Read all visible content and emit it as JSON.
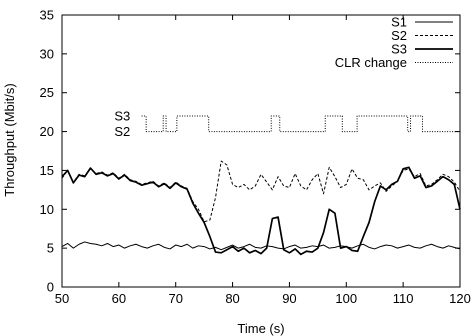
{
  "chart_data": {
    "type": "line",
    "title": "",
    "xlabel": "Time (s)",
    "ylabel": "Throughput (Mbit/s)",
    "xlim": [
      50,
      120
    ],
    "ylim": [
      0,
      35
    ],
    "x_ticks": [
      50,
      60,
      70,
      80,
      90,
      100,
      110,
      120
    ],
    "y_ticks": [
      0,
      5,
      10,
      15,
      20,
      25,
      30,
      35
    ],
    "grid": false,
    "legend_position": "top-right",
    "series": [
      {
        "name": "S1",
        "style": "solid-thin",
        "x": [
          50,
          51,
          52,
          53,
          54,
          55,
          56,
          57,
          58,
          59,
          60,
          61,
          62,
          63,
          64,
          65,
          66,
          67,
          68,
          69,
          70,
          71,
          72,
          73,
          74,
          75,
          76,
          77,
          78,
          79,
          80,
          81,
          82,
          83,
          84,
          85,
          86,
          87,
          88,
          89,
          90,
          91,
          92,
          93,
          94,
          95,
          96,
          97,
          98,
          99,
          100,
          101,
          102,
          103,
          104,
          105,
          106,
          107,
          108,
          109,
          110,
          111,
          112,
          113,
          114,
          115,
          116,
          117,
          118,
          119,
          120
        ],
        "y": [
          5.2,
          5.6,
          5.0,
          5.5,
          5.8,
          5.6,
          5.5,
          5.3,
          5.6,
          5.2,
          5.4,
          5.0,
          5.3,
          5.5,
          5.2,
          5.0,
          5.3,
          5.5,
          5.1,
          4.9,
          5.4,
          5.2,
          5.5,
          5.0,
          5.3,
          5.2,
          4.9,
          5.1,
          4.8,
          5.1,
          5.4,
          5.0,
          5.2,
          5.5,
          5.1,
          5.0,
          5.3,
          5.2,
          5.0,
          4.9,
          5.2,
          5.4,
          5.0,
          5.1,
          5.3,
          5.2,
          5.4,
          5.0,
          5.1,
          5.3,
          5.2,
          5.0,
          5.3,
          5.5,
          5.1,
          4.9,
          5.2,
          5.4,
          5.3,
          5.0,
          5.2,
          5.4,
          5.1,
          5.0,
          5.3,
          5.5,
          5.2,
          5.0,
          5.3,
          5.1,
          4.9
        ]
      },
      {
        "name": "S2",
        "style": "dashed",
        "x": [
          50,
          51,
          52,
          53,
          54,
          55,
          56,
          57,
          58,
          59,
          60,
          61,
          62,
          63,
          64,
          65,
          66,
          67,
          68,
          69,
          70,
          71,
          72,
          73,
          74,
          75,
          76,
          77,
          78,
          79,
          80,
          81,
          82,
          83,
          84,
          85,
          86,
          87,
          88,
          89,
          90,
          91,
          92,
          93,
          94,
          95,
          96,
          97,
          98,
          99,
          100,
          101,
          102,
          103,
          104,
          105,
          106,
          107,
          108,
          109,
          110,
          111,
          112,
          113,
          114,
          115,
          116,
          117,
          118,
          119,
          120
        ],
        "y": [
          14.0,
          15.0,
          13.5,
          14.5,
          14.3,
          15.2,
          14.6,
          14.8,
          14.4,
          14.7,
          14.0,
          14.5,
          13.8,
          13.6,
          13.2,
          13.4,
          13.6,
          13.0,
          13.4,
          12.8,
          13.5,
          13.0,
          12.7,
          11.0,
          10.0,
          8.4,
          8.6,
          11.5,
          16.2,
          15.7,
          13.2,
          12.8,
          13.2,
          12.5,
          13.0,
          14.5,
          13.5,
          12.5,
          14.2,
          13.0,
          12.8,
          14.6,
          13.0,
          12.5,
          13.8,
          14.6,
          12.0,
          15.4,
          14.2,
          12.8,
          13.2,
          15.2,
          14.0,
          13.8,
          12.5,
          13.0,
          13.4,
          12.3,
          13.0,
          13.6,
          15.0,
          15.2,
          14.2,
          14.6,
          13.0,
          13.2,
          13.8,
          14.5,
          14.2,
          13.5,
          12.3
        ]
      },
      {
        "name": "S3",
        "style": "solid-thick",
        "x": [
          50,
          51,
          52,
          53,
          54,
          55,
          56,
          57,
          58,
          59,
          60,
          61,
          62,
          63,
          64,
          65,
          66,
          67,
          68,
          69,
          70,
          71,
          72,
          73,
          74,
          75,
          76,
          77,
          78,
          79,
          80,
          81,
          82,
          83,
          84,
          85,
          86,
          87,
          88,
          89,
          90,
          91,
          92,
          93,
          94,
          95,
          96,
          97,
          98,
          99,
          100,
          101,
          102,
          103,
          104,
          105,
          106,
          107,
          108,
          109,
          110,
          111,
          112,
          113,
          114,
          115,
          116,
          117,
          118,
          119,
          120
        ],
        "y": [
          14.2,
          15.0,
          13.4,
          14.4,
          14.2,
          15.3,
          14.5,
          14.7,
          14.3,
          14.6,
          13.9,
          14.4,
          13.7,
          13.5,
          13.1,
          13.3,
          13.5,
          12.9,
          13.3,
          12.7,
          13.4,
          12.9,
          12.6,
          10.8,
          9.5,
          8.3,
          6.5,
          4.5,
          4.4,
          4.8,
          5.2,
          4.6,
          5.0,
          4.4,
          4.7,
          4.3,
          5.0,
          8.8,
          9.0,
          4.8,
          4.4,
          4.9,
          4.2,
          4.6,
          4.5,
          5.0,
          7.0,
          10.0,
          9.5,
          5.0,
          5.2,
          4.7,
          4.6,
          6.5,
          8.3,
          11.0,
          13.0,
          12.5,
          13.2,
          13.6,
          15.2,
          15.4,
          14.0,
          14.3,
          12.8,
          13.0,
          13.6,
          14.2,
          13.8,
          13.2,
          10.0
        ]
      },
      {
        "name": "CLR change",
        "style": "dotted-step",
        "x": [
          64,
          64.8,
          64.8,
          67.8,
          67.8,
          68.3,
          68.3,
          70.2,
          70.2,
          75.8,
          75.8,
          86.8,
          86.8,
          88.3,
          88.3,
          96.3,
          96.3,
          99.3,
          99.3,
          101.9,
          101.9,
          110.8,
          110.8,
          111.3,
          111.3,
          113.4,
          113.4,
          120
        ],
        "y": [
          22,
          22,
          20,
          20,
          22,
          22,
          20,
          20,
          22,
          22,
          20,
          20,
          22,
          22,
          20,
          20,
          22,
          22,
          20,
          20,
          22,
          22,
          20,
          20,
          22,
          22,
          20,
          20
        ]
      }
    ],
    "annotations": [
      {
        "text": "S3",
        "x": 62,
        "y": 22
      },
      {
        "text": "S2",
        "x": 62,
        "y": 20
      }
    ]
  }
}
